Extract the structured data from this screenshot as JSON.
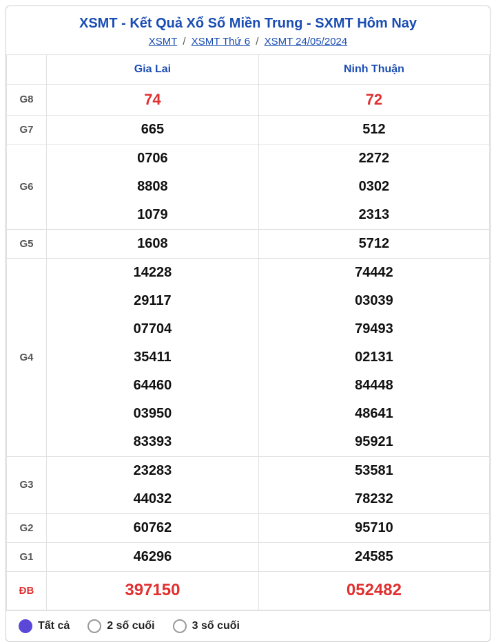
{
  "title": "XSMT - Kết Quả Xổ Số Miền Trung - SXMT Hôm Nay",
  "breadcrumbs": {
    "a": "XSMT",
    "b": "XSMT Thứ 6",
    "c": "XSMT 24/05/2024",
    "sep": "/"
  },
  "colors": {
    "accent": "#1a4db3",
    "special": "#e03030",
    "border": "#e2e2e2",
    "radio_checked": "#5b48d9"
  },
  "provinces": [
    "Gia Lai",
    "Ninh Thuận"
  ],
  "prizes": [
    {
      "label": "G8",
      "red": true,
      "cols": [
        [
          "74"
        ],
        [
          "72"
        ]
      ]
    },
    {
      "label": "G7",
      "cols": [
        [
          "665"
        ],
        [
          "512"
        ]
      ]
    },
    {
      "label": "G6",
      "cols": [
        [
          "0706",
          "8808",
          "1079"
        ],
        [
          "2272",
          "0302",
          "2313"
        ]
      ]
    },
    {
      "label": "G5",
      "cols": [
        [
          "1608"
        ],
        [
          "5712"
        ]
      ]
    },
    {
      "label": "G4",
      "cols": [
        [
          "14228",
          "29117",
          "07704",
          "35411",
          "64460",
          "03950",
          "83393"
        ],
        [
          "74442",
          "03039",
          "79493",
          "02131",
          "84448",
          "48641",
          "95921"
        ]
      ]
    },
    {
      "label": "G3",
      "cols": [
        [
          "23283",
          "44032"
        ],
        [
          "53581",
          "78232"
        ]
      ]
    },
    {
      "label": "G2",
      "cols": [
        [
          "60762"
        ],
        [
          "95710"
        ]
      ]
    },
    {
      "label": "G1",
      "cols": [
        [
          "46296"
        ],
        [
          "24585"
        ]
      ]
    },
    {
      "label": "ĐB",
      "special": true,
      "cols": [
        [
          "397150"
        ],
        [
          "052482"
        ]
      ]
    }
  ],
  "filters": [
    {
      "label": "Tất cả",
      "checked": true
    },
    {
      "label": "2 số cuối",
      "checked": false
    },
    {
      "label": "3 số cuối",
      "checked": false
    }
  ]
}
